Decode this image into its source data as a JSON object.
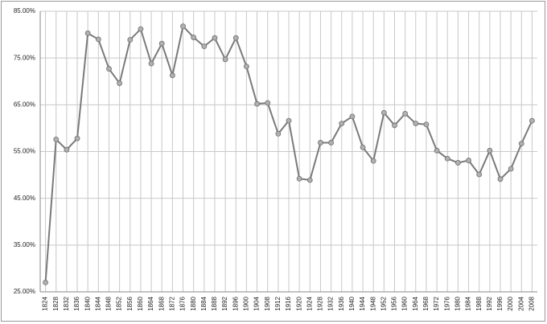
{
  "chart_data": {
    "type": "line",
    "categories": [
      "1824",
      "1828",
      "1832",
      "1836",
      "1840",
      "1844",
      "1848",
      "1852",
      "1856",
      "1860",
      "1864",
      "1868",
      "1872",
      "1876",
      "1880",
      "1884",
      "1888",
      "1892",
      "1896",
      "1900",
      "1904",
      "1908",
      "1912",
      "1916",
      "1920",
      "1924",
      "1928",
      "1932",
      "1936",
      "1940",
      "1944",
      "1948",
      "1952",
      "1956",
      "1960",
      "1964",
      "1968",
      "1972",
      "1976",
      "1980",
      "1984",
      "1988",
      "1992",
      "1996",
      "2000",
      "2004",
      "2008"
    ],
    "series": [
      {
        "color": "#7a7a7a",
        "values": [
          27.0,
          57.6,
          55.4,
          57.8,
          80.3,
          79.0,
          72.7,
          69.6,
          78.9,
          81.2,
          73.8,
          78.1,
          71.3,
          81.8,
          79.4,
          77.5,
          79.3,
          74.7,
          79.3,
          73.2,
          65.2,
          65.4,
          58.8,
          61.6,
          49.2,
          48.9,
          56.9,
          56.9,
          61.0,
          62.5,
          55.9,
          53.0,
          63.3,
          60.6,
          63.1,
          61.0,
          60.8,
          55.2,
          53.5,
          52.6,
          53.1,
          50.1,
          55.2,
          49.1,
          51.3,
          56.7,
          61.6
        ]
      }
    ],
    "ylim": [
      25,
      85
    ],
    "yticks": [
      {
        "value": 25,
        "label": "25.00%"
      },
      {
        "value": 35,
        "label": "35.00%"
      },
      {
        "value": 45,
        "label": "45.00%"
      },
      {
        "value": 55,
        "label": "55.00%"
      },
      {
        "value": 65,
        "label": "65.00%"
      },
      {
        "value": 75,
        "label": "75.00%"
      },
      {
        "value": 85,
        "label": "85.00%"
      }
    ],
    "grid": true
  }
}
